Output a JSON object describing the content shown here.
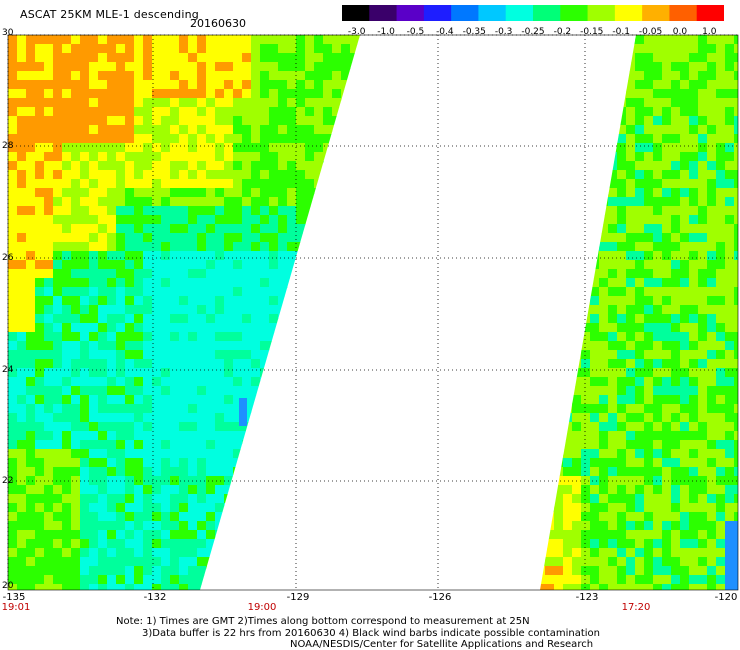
{
  "header": {
    "title": "ASCAT 25KM MLE-1 descending",
    "date": "20160630"
  },
  "colorbar": {
    "labels": [
      "-3.0",
      "-1.0",
      "-0.5",
      "-0.4",
      "-0.35",
      "-0.3",
      "-0.25",
      "-0.2",
      "-0.15",
      "-0.1",
      "-0.05",
      "0.0",
      "1.0"
    ],
    "colors": [
      "#000000",
      "#3a006a",
      "#5a00c8",
      "#1e1eff",
      "#0078ff",
      "#00c8ff",
      "#00ffe0",
      "#00ff78",
      "#2cff00",
      "#a0ff00",
      "#ffff00",
      "#ffb000",
      "#ff6000",
      "#ff0000"
    ]
  },
  "map": {
    "lat_labels": [
      "30",
      "28",
      "26",
      "24",
      "22",
      "20"
    ],
    "lon_labels": [
      "-135",
      "-132",
      "-129",
      "-126",
      "-123",
      "-120"
    ],
    "time_labels": [
      "19:01",
      "19:00",
      "17:20"
    ],
    "lat_range": [
      20,
      30
    ],
    "lon_range": [
      -135,
      -120
    ],
    "palette": {
      "cyan": "#00ffe0",
      "aquagreen": "#00ff9c",
      "green": "#2cff00",
      "lime": "#a0ff00",
      "yellow": "#ffff00",
      "orange": "#ff9a00",
      "blue": "#1e90ff",
      "background": "#ffffff",
      "grid": "#000000",
      "time_text": "#cc0000"
    }
  },
  "notes": {
    "line1": "Note: 1) Times are GMT 2)Times along bottom correspond to measurement at 25N",
    "line2": "3)Data buffer is 22 hrs from 20160630 4) Black wind barbs indicate possible contamination",
    "line3": "NOAA/NESDIS/Center for Satellite Applications and Research"
  }
}
